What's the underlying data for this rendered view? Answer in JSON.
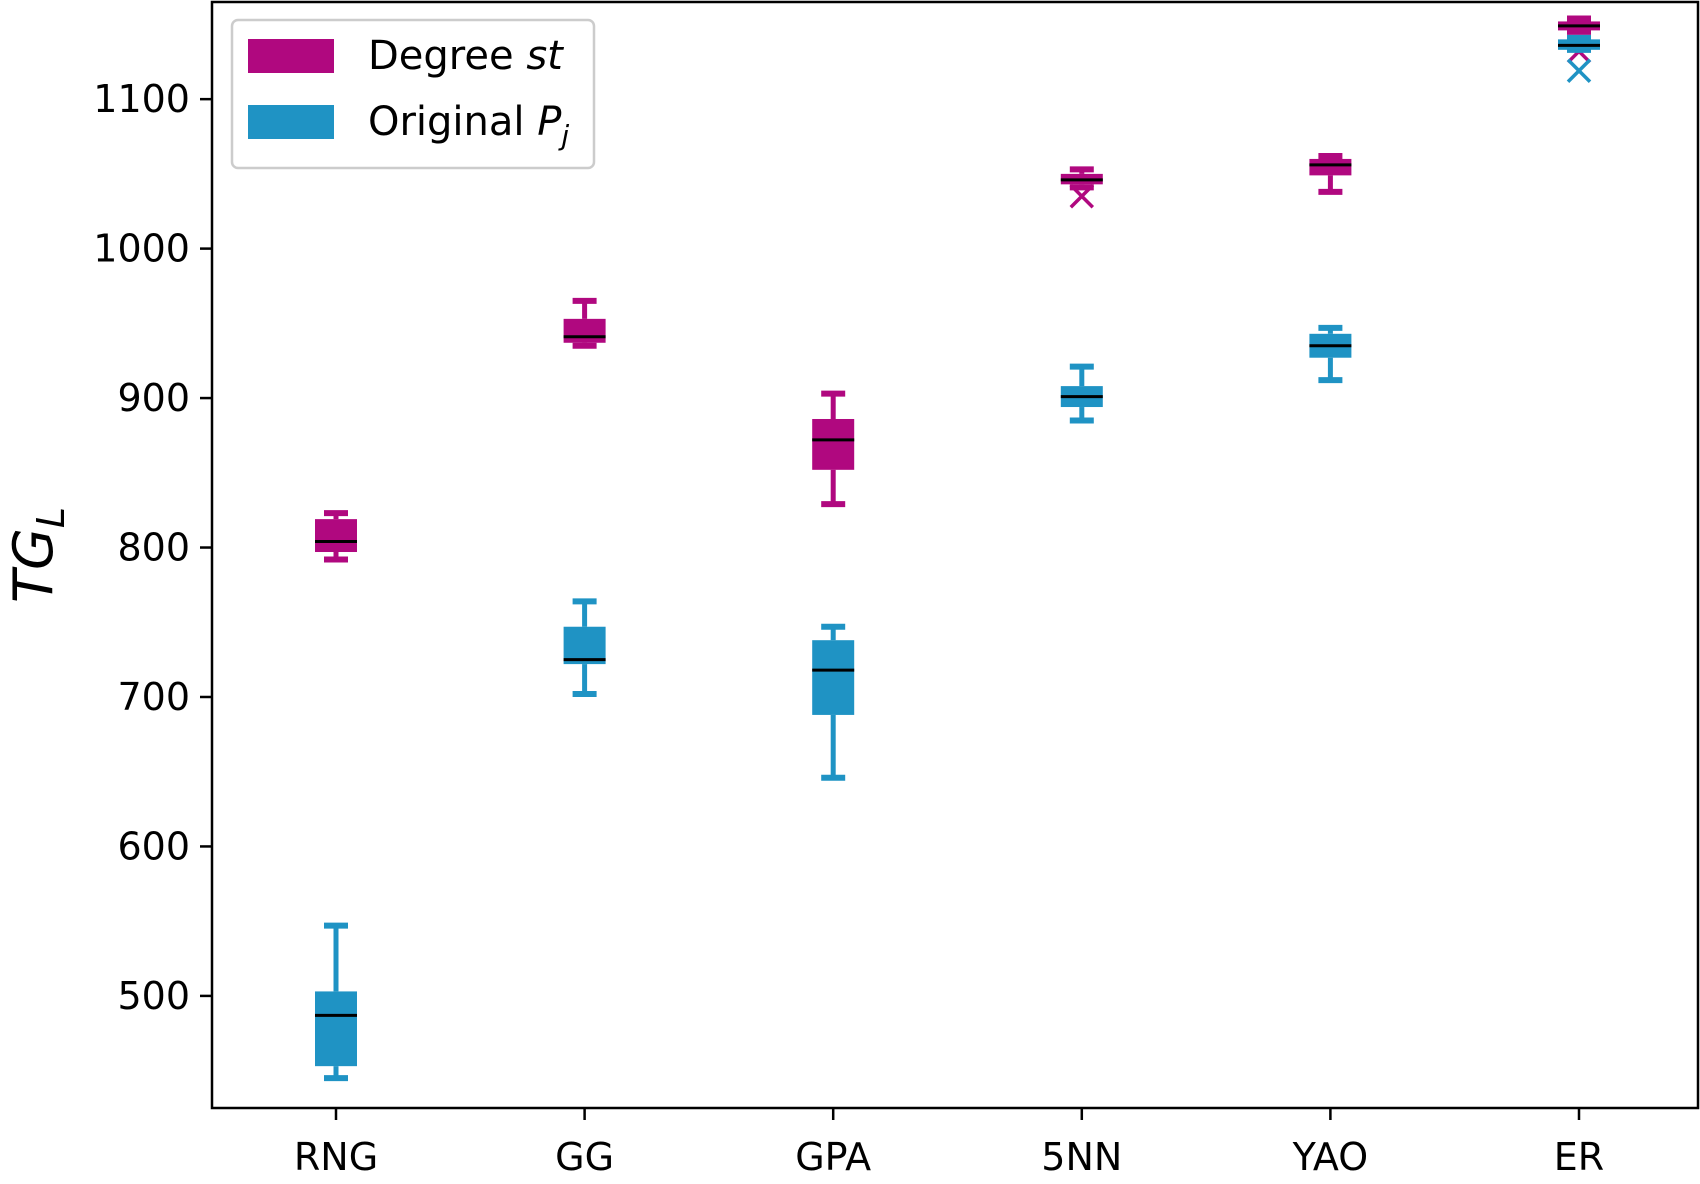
{
  "chart_data": {
    "type": "box",
    "ylabel": "TG_L",
    "ylim": [
      425,
      1165
    ],
    "yticks": [
      500,
      600,
      700,
      800,
      900,
      1000,
      1100
    ],
    "categories": [
      "RNG",
      "GG",
      "GPA",
      "5NN",
      "YAO",
      "ER"
    ],
    "grid": false,
    "legend": {
      "position": "top-left",
      "entries": [
        {
          "label": "Degree ",
          "italic": "st",
          "color": "#b0087f"
        },
        {
          "label": "Original ",
          "italic": "P",
          "sub": "j",
          "color": "#1f93c4"
        }
      ]
    },
    "median_color": "#000000",
    "series": [
      {
        "name": "Degree st",
        "color": "#b0087f",
        "boxes": [
          {
            "whislo": 792,
            "q1": 797,
            "med": 804,
            "q3": 819,
            "whishi": 823,
            "fliers": []
          },
          {
            "whislo": 935,
            "q1": 937,
            "med": 941,
            "q3": 953,
            "whishi": 965,
            "fliers": []
          },
          {
            "whislo": 829,
            "q1": 852,
            "med": 872,
            "q3": 886,
            "whishi": 903,
            "fliers": []
          },
          {
            "whislo": 1041,
            "q1": 1043,
            "med": 1046,
            "q3": 1050,
            "whishi": 1053,
            "fliers": [
              1035
            ]
          },
          {
            "whislo": 1038,
            "q1": 1049,
            "med": 1056,
            "q3": 1060,
            "whishi": 1062,
            "fliers": []
          },
          {
            "whislo": 1145,
            "q1": 1146,
            "med": 1149,
            "q3": 1152,
            "whishi": 1154,
            "fliers": [
              1132
            ]
          }
        ]
      },
      {
        "name": "Original Pj",
        "color": "#1f93c4",
        "boxes": [
          {
            "whislo": 445,
            "q1": 453,
            "med": 487,
            "q3": 503,
            "whishi": 547,
            "fliers": []
          },
          {
            "whislo": 702,
            "q1": 722,
            "med": 725,
            "q3": 747,
            "whishi": 764,
            "fliers": []
          },
          {
            "whislo": 646,
            "q1": 688,
            "med": 718,
            "q3": 738,
            "whishi": 747,
            "fliers": []
          },
          {
            "whislo": 885,
            "q1": 894,
            "med": 901,
            "q3": 908,
            "whishi": 921,
            "fliers": []
          },
          {
            "whislo": 912,
            "q1": 927,
            "med": 935,
            "q3": 943,
            "whishi": 947,
            "fliers": []
          },
          {
            "whislo": 1133,
            "q1": 1133,
            "med": 1136,
            "q3": 1140,
            "whishi": 1141,
            "fliers": [
              1119
            ]
          }
        ]
      }
    ]
  }
}
